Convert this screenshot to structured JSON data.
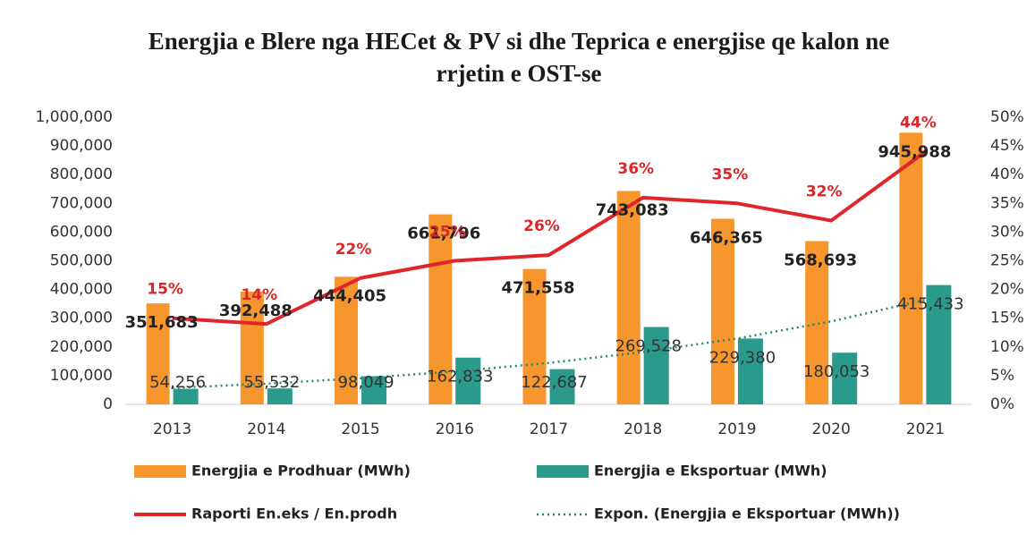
{
  "chart_data": {
    "type": "bar_line",
    "title": "Energjia e Blere nga HECet & PV si dhe  Teprica e energjise qe kalon ne rrjetin e OST-se",
    "categories": [
      "2013",
      "2014",
      "2015",
      "2016",
      "2017",
      "2018",
      "2019",
      "2020",
      "2021"
    ],
    "series": [
      {
        "name": "Energjia e Prodhuar (MWh)",
        "color": "#f7962d",
        "type": "bar",
        "values": [
          351683,
          392488,
          444405,
          661796,
          471558,
          743083,
          646365,
          568693,
          945988
        ],
        "value_labels": [
          "351,683",
          "392,488",
          "444,405",
          "661,796",
          "471,558",
          "743,083",
          "646,365",
          "568,693",
          "945,988"
        ]
      },
      {
        "name": "Energjia e Eksportuar (MWh)",
        "color": "#2a9a8c",
        "type": "bar",
        "values": [
          54256,
          55532,
          98049,
          162833,
          122687,
          269528,
          229380,
          180053,
          415433
        ],
        "value_labels": [
          "54,256",
          "55,532",
          "98,049",
          "162,833",
          "122,687",
          "269,528",
          "229,380",
          "180,053",
          "415,433"
        ]
      },
      {
        "name": "Raporti En.eks / En.prodh",
        "color": "#e0262a",
        "type": "line",
        "axis": "y2",
        "values": [
          15,
          14,
          22,
          25,
          26,
          36,
          35,
          32,
          44
        ],
        "value_labels": [
          "15%",
          "14%",
          "22%",
          "25%",
          "26%",
          "36%",
          "35%",
          "32%",
          "44%"
        ]
      }
    ],
    "trendline": {
      "name": "Expon. (Energjia e Eksportuar (MWh))",
      "fit": "exponential",
      "color": "#1f8a6a"
    },
    "ylim": [
      0,
      1000000
    ],
    "yticks": [
      0,
      {
        "value": 100000,
        "label": "100,000"
      },
      {
        "value": 200000,
        "label": "200,000"
      },
      {
        "value": 300000,
        "label": "300,000"
      },
      {
        "value": 400000,
        "label": "400,000"
      },
      {
        "value": 500000,
        "label": "500,000"
      },
      {
        "value": 600000,
        "label": "600,000"
      },
      {
        "value": 700000,
        "label": "700,000"
      },
      {
        "value": 800000,
        "label": "800,000"
      },
      {
        "value": 900000,
        "label": "900,000"
      },
      {
        "value": 1000000,
        "label": "1,000,000"
      }
    ],
    "y2lim": [
      0,
      50
    ],
    "y2ticks": [
      {
        "value": 0,
        "label": "0%"
      },
      {
        "value": 5,
        "label": "5%"
      },
      {
        "value": 10,
        "label": "10%"
      },
      {
        "value": 15,
        "label": "15%"
      },
      {
        "value": 20,
        "label": "20%"
      },
      {
        "value": 25,
        "label": "25%"
      },
      {
        "value": 30,
        "label": "30%"
      },
      {
        "value": 35,
        "label": "35%"
      },
      {
        "value": 40,
        "label": "40%"
      },
      {
        "value": 45,
        "label": "45%"
      },
      {
        "value": 50,
        "label": "50%"
      }
    ],
    "legend": "bottom"
  }
}
